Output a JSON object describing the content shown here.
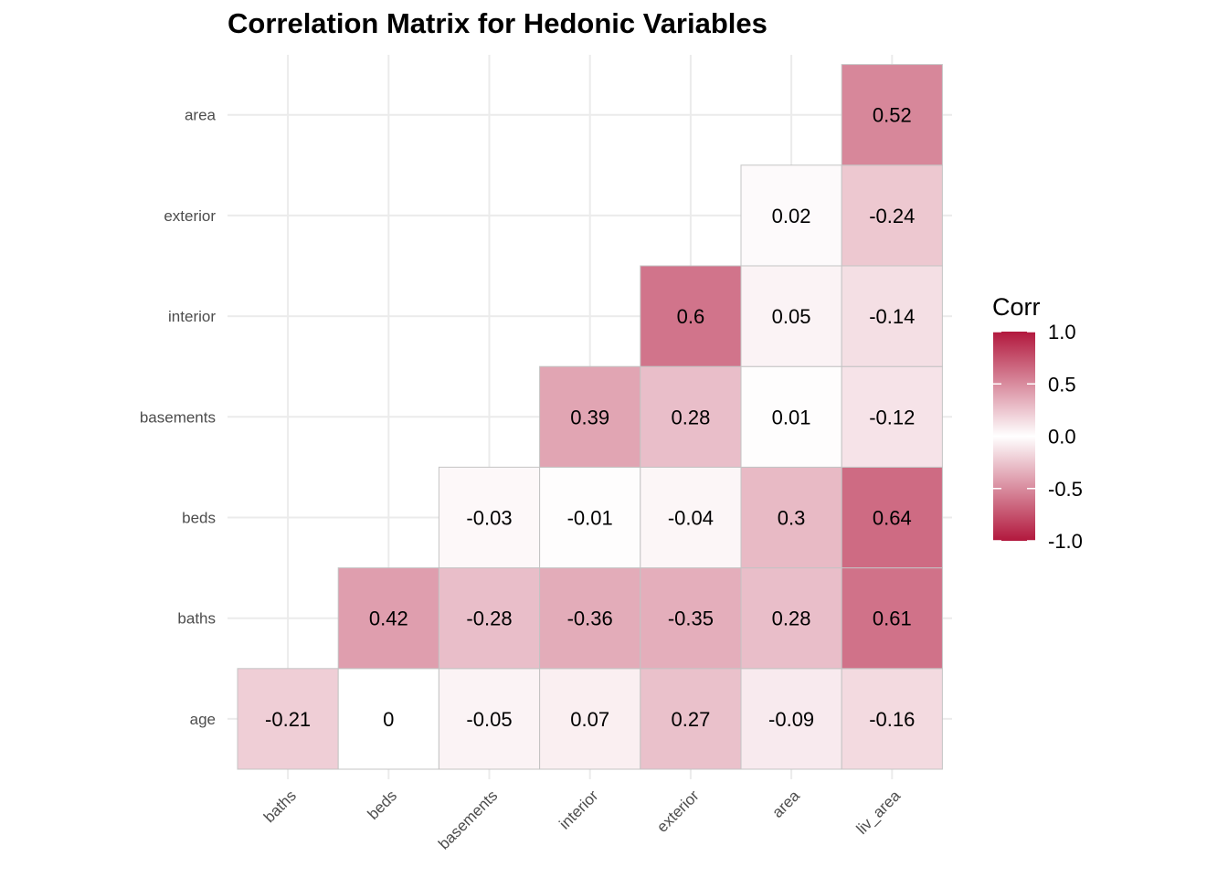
{
  "chart_data": {
    "type": "heatmap",
    "title": "Correlation Matrix for Hedonic Variables",
    "x_labels": [
      "baths",
      "beds",
      "basements",
      "interior",
      "exterior",
      "area",
      "liv_area"
    ],
    "y_labels": [
      "age",
      "baths",
      "beds",
      "basements",
      "interior",
      "exterior",
      "area"
    ],
    "cells": [
      {
        "row": "age",
        "col": "baths",
        "value": -0.21,
        "label": "-0.21"
      },
      {
        "row": "age",
        "col": "beds",
        "value": 0,
        "label": "0"
      },
      {
        "row": "age",
        "col": "basements",
        "value": -0.05,
        "label": "-0.05"
      },
      {
        "row": "age",
        "col": "interior",
        "value": 0.07,
        "label": "0.07"
      },
      {
        "row": "age",
        "col": "exterior",
        "value": 0.27,
        "label": "0.27"
      },
      {
        "row": "age",
        "col": "area",
        "value": -0.09,
        "label": "-0.09"
      },
      {
        "row": "age",
        "col": "liv_area",
        "value": -0.16,
        "label": "-0.16"
      },
      {
        "row": "baths",
        "col": "beds",
        "value": 0.42,
        "label": "0.42"
      },
      {
        "row": "baths",
        "col": "basements",
        "value": -0.28,
        "label": "-0.28"
      },
      {
        "row": "baths",
        "col": "interior",
        "value": -0.36,
        "label": "-0.36"
      },
      {
        "row": "baths",
        "col": "exterior",
        "value": -0.35,
        "label": "-0.35"
      },
      {
        "row": "baths",
        "col": "area",
        "value": 0.28,
        "label": "0.28"
      },
      {
        "row": "baths",
        "col": "liv_area",
        "value": 0.61,
        "label": "0.61"
      },
      {
        "row": "beds",
        "col": "basements",
        "value": -0.03,
        "label": "-0.03"
      },
      {
        "row": "beds",
        "col": "interior",
        "value": -0.01,
        "label": "-0.01"
      },
      {
        "row": "beds",
        "col": "exterior",
        "value": -0.04,
        "label": "-0.04"
      },
      {
        "row": "beds",
        "col": "area",
        "value": 0.3,
        "label": "0.3"
      },
      {
        "row": "beds",
        "col": "liv_area",
        "value": 0.64,
        "label": "0.64"
      },
      {
        "row": "basements",
        "col": "interior",
        "value": 0.39,
        "label": "0.39"
      },
      {
        "row": "basements",
        "col": "exterior",
        "value": 0.28,
        "label": "0.28"
      },
      {
        "row": "basements",
        "col": "area",
        "value": 0.01,
        "label": "0.01"
      },
      {
        "row": "basements",
        "col": "liv_area",
        "value": -0.12,
        "label": "-0.12"
      },
      {
        "row": "interior",
        "col": "exterior",
        "value": 0.6,
        "label": "0.6"
      },
      {
        "row": "interior",
        "col": "area",
        "value": 0.05,
        "label": "0.05"
      },
      {
        "row": "interior",
        "col": "liv_area",
        "value": -0.14,
        "label": "-0.14"
      },
      {
        "row": "exterior",
        "col": "area",
        "value": 0.02,
        "label": "0.02"
      },
      {
        "row": "exterior",
        "col": "liv_area",
        "value": -0.24,
        "label": "-0.24"
      },
      {
        "row": "area",
        "col": "liv_area",
        "value": 0.52,
        "label": "0.52"
      }
    ],
    "legend": {
      "title": "Corr",
      "placement": "right",
      "range": [
        -1,
        1
      ],
      "ticks": [
        "1.0",
        "0.5",
        "0.0",
        "-0.5",
        "-1.0"
      ],
      "colors": {
        "low": "#b2183d",
        "mid": "#ffffff",
        "high": "#b2183d"
      }
    },
    "grid": true
  }
}
